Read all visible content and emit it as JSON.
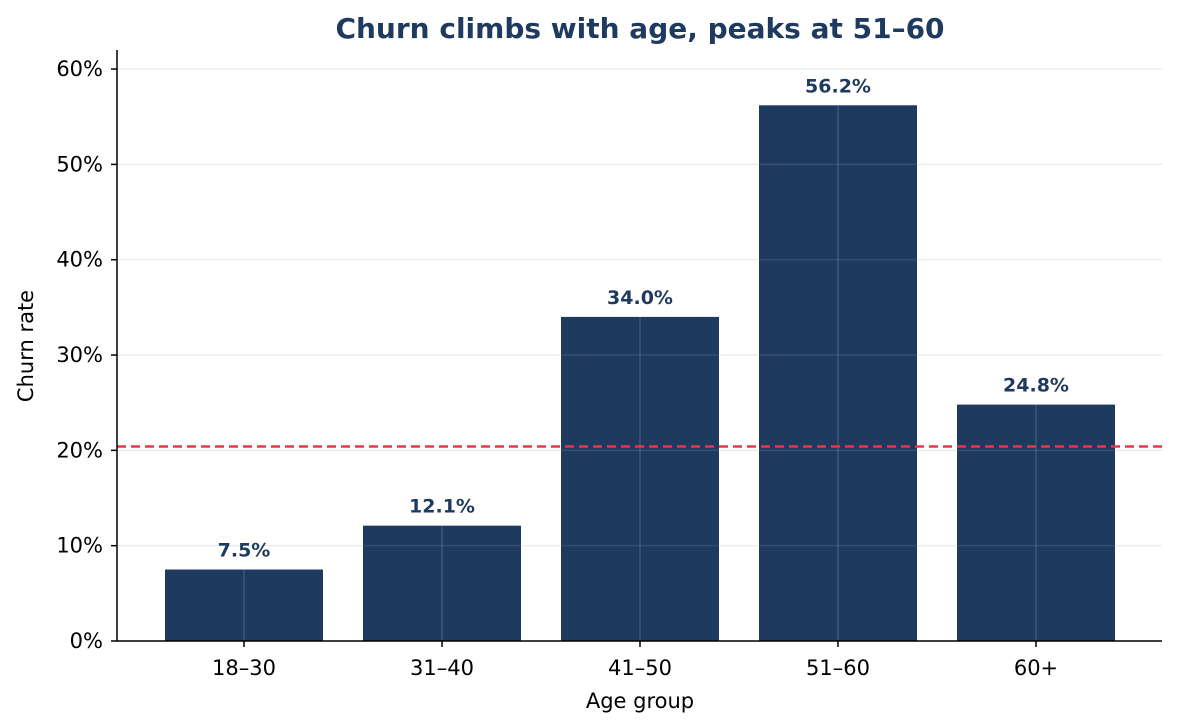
{
  "chart_data": {
    "type": "bar",
    "title": "Churn climbs with age, peaks at 51–60",
    "xlabel": "Age group",
    "ylabel": "Churn rate",
    "categories": [
      "18–30",
      "31–40",
      "41–50",
      "51–60",
      "60+"
    ],
    "values": [
      7.5,
      12.1,
      34.0,
      56.2,
      24.8
    ],
    "data_labels": [
      "7.5%",
      "12.1%",
      "34.0%",
      "56.2%",
      "24.8%"
    ],
    "ylim": [
      0,
      62
    ],
    "yticks": [
      0,
      10,
      20,
      30,
      40,
      50,
      60
    ],
    "ytick_labels": [
      "0%",
      "10%",
      "20%",
      "30%",
      "40%",
      "50%",
      "60%"
    ],
    "reference_line": {
      "value": 20.4,
      "style": "dashed"
    },
    "grid": true,
    "colors": {
      "bar": "#1f3a5f",
      "title": "#1f3a5f",
      "data_label": "#1f3a5f",
      "reference_line": "#e03a45"
    }
  }
}
